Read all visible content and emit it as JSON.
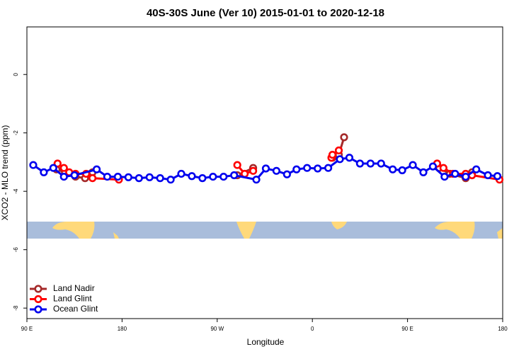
{
  "chart_data": {
    "type": "line",
    "title": "40S-30S June (Ver 10)   2015-01-01 to 2020-12-18",
    "x_label": "Longitude",
    "y_label": "XCO2 - MLO trend (ppm)",
    "xlim": [
      90,
      540
    ],
    "xticks": [
      {
        "value": 90,
        "label": "90 E"
      },
      180,
      {
        "value": 270,
        "label": "90 W"
      },
      0,
      {
        "value": 450,
        "label": "90 E"
      },
      {
        "value": 540,
        "label": "180"
      }
    ],
    "ylim": [
      -8.36,
      1.63
    ],
    "yticks": [
      0,
      -2,
      -4,
      -6,
      -8
    ],
    "legend": "bottom-left",
    "series": [
      {
        "name": "Land Nadir",
        "color": "#a52a2a",
        "x": [
          118,
          126,
          136,
          145,
          152,
          null,
          289,
          304,
          null,
          379,
          385,
          390,
          null,
          480,
          490,
          505,
          511
        ],
        "values": [
          -3.25,
          -3.35,
          -3.5,
          -3.55,
          -3.35,
          null,
          -3.45,
          -3.2,
          null,
          -2.85,
          -2.75,
          -2.15,
          null,
          -3.2,
          -3.4,
          -3.55,
          -3.35
        ]
      },
      {
        "name": "Land Glint",
        "color": "#ff0000",
        "x": [
          119,
          125,
          130,
          136,
          146,
          152,
          177,
          null,
          289,
          296,
          304,
          null,
          378,
          379,
          385,
          null,
          478,
          484,
          493,
          505,
          511,
          537
        ],
        "values": [
          -3.05,
          -3.2,
          -3.35,
          -3.4,
          -3.4,
          -3.55,
          -3.6,
          null,
          -3.1,
          -3.4,
          -3.3,
          null,
          -2.85,
          -2.75,
          -2.6,
          null,
          -3.05,
          -3.2,
          -3.4,
          -3.4,
          -3.45,
          -3.6
        ]
      },
      {
        "name": "Ocean Glint",
        "color": "#0000ee",
        "x": [
          96,
          106,
          115,
          125,
          135,
          156,
          166,
          176,
          186,
          196,
          206,
          216,
          226,
          236,
          246,
          256,
          266,
          276,
          286,
          307,
          316,
          326,
          336,
          345,
          355,
          365,
          375,
          386,
          395,
          405,
          415,
          425,
          436,
          445,
          455,
          465,
          474,
          485,
          495,
          505,
          515,
          526,
          535
        ],
        "values": [
          -3.1,
          -3.35,
          -3.2,
          -3.5,
          -3.45,
          -3.25,
          -3.5,
          -3.5,
          -3.52,
          -3.55,
          -3.52,
          -3.55,
          -3.6,
          -3.4,
          -3.48,
          -3.55,
          -3.5,
          -3.5,
          -3.45,
          -3.6,
          -3.22,
          -3.3,
          -3.42,
          -3.25,
          -3.2,
          -3.22,
          -3.2,
          -2.9,
          -2.85,
          -3.05,
          -3.05,
          -3.05,
          -3.25,
          -3.28,
          -3.1,
          -3.35,
          -3.15,
          -3.5,
          -3.4,
          -3.5,
          -3.25,
          -3.45,
          -3.48
        ]
      }
    ]
  }
}
